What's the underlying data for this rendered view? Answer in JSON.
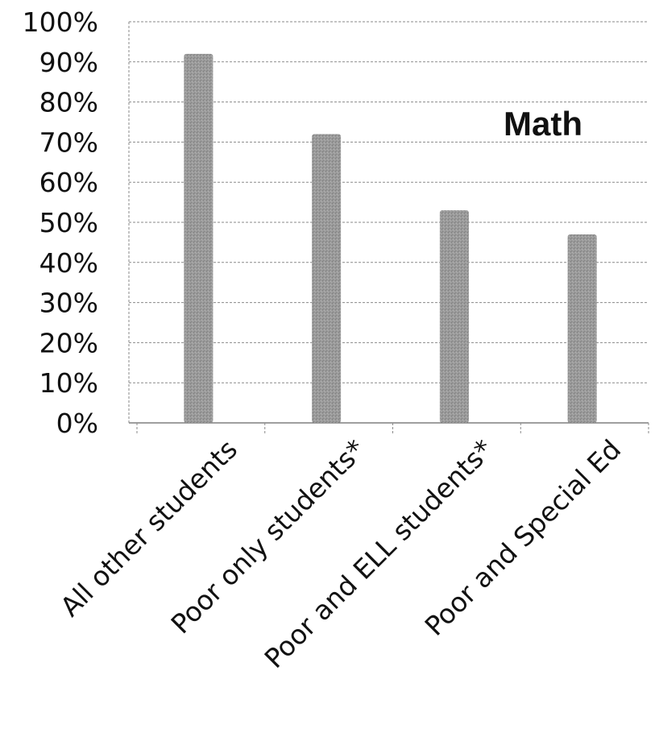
{
  "chart_data": {
    "type": "bar",
    "title": "Math",
    "categories": [
      "All other students",
      "Poor only students*",
      "Poor and ELL students*",
      "Poor and Special Ed"
    ],
    "values": [
      92,
      72,
      53,
      47
    ],
    "value_unit": "%",
    "ylim": [
      0,
      100
    ],
    "yticks": [
      "0%",
      "10%",
      "20%",
      "30%",
      "40%",
      "50%",
      "60%",
      "70%",
      "80%",
      "90%",
      "100%"
    ],
    "grid": true,
    "legend": "none",
    "colors": {
      "bar": "#9a9a9a",
      "gridline": "#8a8a8a",
      "text": "#111111"
    }
  }
}
